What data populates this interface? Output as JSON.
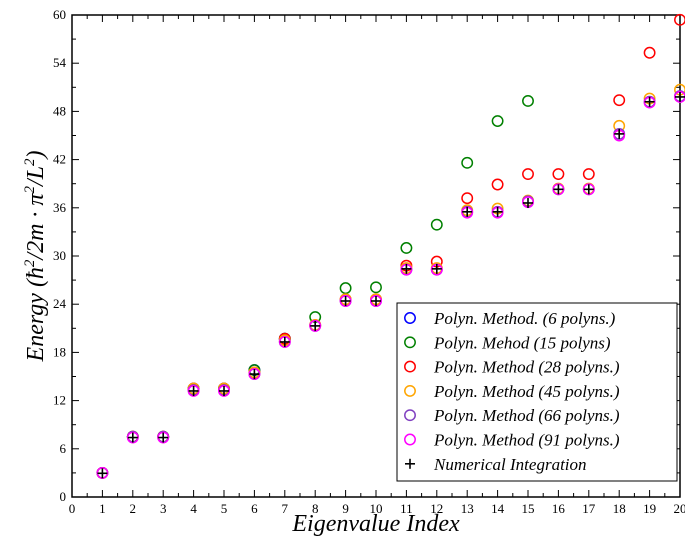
{
  "chart_data": {
    "type": "scatter",
    "xlabel": "Eigenvalue Index",
    "ylabel": "Energy (ħ²/2m · π²/L²)",
    "xlim": [
      0,
      20
    ],
    "ylim": [
      0,
      60
    ],
    "xticks": [
      "0",
      "1",
      "2",
      "3",
      "4",
      "5",
      "6",
      "7",
      "8",
      "9",
      "10",
      "11",
      "12",
      "13",
      "14",
      "15",
      "16",
      "17",
      "18",
      "19",
      "20"
    ],
    "yticks": [
      "0",
      "6",
      "12",
      "18",
      "24",
      "30",
      "36",
      "42",
      "48",
      "54",
      "60"
    ],
    "legend_position": "bottom-right",
    "grid": false,
    "series": [
      {
        "name": "Polyn. Method. (6 polyns.)",
        "color": "#0000ff",
        "marker": "circle",
        "x": [
          1,
          2,
          3,
          4,
          5,
          6,
          7
        ],
        "y": [
          3.0,
          7.5,
          7.5,
          13.5,
          13.5,
          15.8,
          19.7
        ]
      },
      {
        "name": "Polyn. Mehod (15 polyns)",
        "color": "#008000",
        "marker": "circle",
        "x": [
          1,
          2,
          3,
          4,
          5,
          6,
          7,
          8,
          9,
          10,
          11,
          12,
          13,
          14,
          15
        ],
        "y": [
          3.0,
          7.5,
          7.5,
          13.5,
          13.5,
          15.8,
          19.7,
          22.4,
          26.0,
          26.1,
          31.0,
          33.9,
          41.6,
          46.8,
          49.3
        ]
      },
      {
        "name": "Polyn. Method (28 polyns.)",
        "color": "#ff0000",
        "marker": "circle",
        "x": [
          1,
          2,
          3,
          4,
          5,
          6,
          7,
          8,
          9,
          10,
          11,
          12,
          13,
          14,
          15,
          16,
          17,
          18,
          19,
          20
        ],
        "y": [
          3.0,
          7.5,
          7.5,
          13.5,
          13.5,
          15.5,
          19.7,
          21.4,
          24.6,
          24.6,
          28.8,
          29.3,
          37.2,
          38.9,
          40.2,
          40.2,
          40.2,
          49.4,
          55.3,
          59.4
        ]
      },
      {
        "name": "Polyn. Method (45 polyns.)",
        "color": "#ffa500",
        "marker": "circle",
        "x": [
          1,
          2,
          3,
          4,
          5,
          6,
          7,
          8,
          9,
          10,
          11,
          12,
          13,
          14,
          15,
          16,
          17,
          18,
          19,
          20
        ],
        "y": [
          3.0,
          7.5,
          7.5,
          13.5,
          13.5,
          15.5,
          19.5,
          21.4,
          24.6,
          24.6,
          28.5,
          28.5,
          35.7,
          35.9,
          36.9,
          38.4,
          38.4,
          46.2,
          49.6,
          50.7
        ]
      },
      {
        "name": "Polyn. Method (66 polyns.)",
        "color": "#8040c0",
        "marker": "circle",
        "x": [
          1,
          2,
          3,
          4,
          5,
          6,
          7,
          8,
          9,
          10,
          11,
          12,
          13,
          14,
          15,
          16,
          17,
          18,
          19,
          20
        ],
        "y": [
          3.0,
          7.5,
          7.5,
          13.3,
          13.3,
          15.3,
          19.3,
          21.3,
          24.4,
          24.4,
          28.3,
          28.3,
          35.5,
          35.5,
          36.8,
          38.3,
          38.3,
          45.2,
          49.2,
          49.9
        ]
      },
      {
        "name": "Polyn. Method (91 polyns.)",
        "color": "#ff00ff",
        "marker": "circle",
        "x": [
          1,
          2,
          3,
          4,
          5,
          6,
          7,
          8,
          9,
          10,
          11,
          12,
          13,
          14,
          15,
          16,
          17,
          18,
          19,
          20
        ],
        "y": [
          3.0,
          7.4,
          7.4,
          13.2,
          13.2,
          15.3,
          19.3,
          21.3,
          24.4,
          24.4,
          28.3,
          28.3,
          35.4,
          35.4,
          36.7,
          38.3,
          38.3,
          45.0,
          49.1,
          49.8
        ]
      },
      {
        "name": "Numerical Integration",
        "color": "#000000",
        "marker": "plus",
        "x": [
          1,
          2,
          3,
          4,
          5,
          6,
          7,
          8,
          9,
          10,
          11,
          12,
          13,
          14,
          15,
          16,
          17,
          18,
          19,
          20
        ],
        "y": [
          2.95,
          7.4,
          7.4,
          13.2,
          13.2,
          15.3,
          19.3,
          21.3,
          24.4,
          24.4,
          28.4,
          28.4,
          35.5,
          35.5,
          36.6,
          38.3,
          38.3,
          45.2,
          49.2,
          49.8
        ]
      }
    ]
  }
}
